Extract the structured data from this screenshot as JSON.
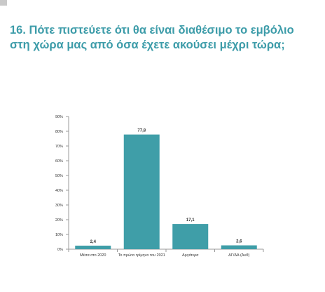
{
  "title_lines": [
    "16. Πότε πιστεύετε ότι θα είναι διαθέσιμο το εμβόλιο",
    "στη χώρα μας από όσα έχετε ακούσει μέχρι τώρα;"
  ],
  "colors": {
    "title": "#3d9ca9",
    "bar": "#3f9ea8",
    "axis": "#9a9a9a",
    "text": "#333333"
  },
  "chart_data": {
    "type": "bar",
    "categories": [
      "Μέσα στο 2020",
      "Το πρώτο τρίμηνο του 2021",
      "Αργότερα",
      "ΔΓ/ΔΑ (Αυθ)"
    ],
    "values": [
      2.4,
      77.8,
      17.1,
      2.6
    ],
    "value_labels": [
      "2,4",
      "77,8",
      "17,1",
      "2,6"
    ],
    "ylim": [
      0,
      90
    ],
    "yticks": [
      0,
      10,
      20,
      30,
      40,
      50,
      60,
      70,
      80,
      90
    ],
    "ytick_labels": [
      "0%",
      "10%",
      "20%",
      "30%",
      "40%",
      "50%",
      "60%",
      "70%",
      "80%",
      "90%"
    ],
    "grid": false,
    "legend": false
  }
}
